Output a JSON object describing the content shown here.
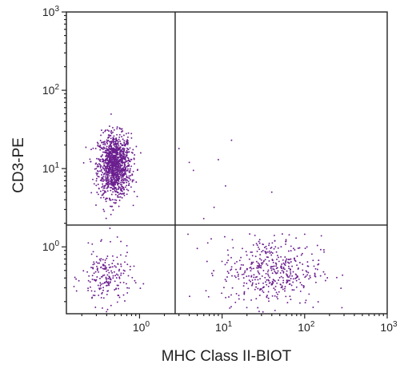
{
  "chart_data": {
    "type": "scatter",
    "title": "",
    "xlabel": "MHC Class II-BIOT",
    "ylabel": "CD3-PE",
    "x_scale": "log",
    "y_scale": "log",
    "xlim": [
      0.13,
      1000
    ],
    "ylim": [
      0.14,
      1000
    ],
    "x_ticks": [
      {
        "base": "10",
        "exp": "0",
        "value": 1
      },
      {
        "base": "10",
        "exp": "1",
        "value": 10
      },
      {
        "base": "10",
        "exp": "2",
        "value": 100
      },
      {
        "base": "10",
        "exp": "3",
        "value": 1000
      }
    ],
    "y_ticks": [
      {
        "base": "10",
        "exp": "0",
        "value": 1
      },
      {
        "base": "10",
        "exp": "1",
        "value": 10
      },
      {
        "base": "10",
        "exp": "2",
        "value": 100
      },
      {
        "base": "10",
        "exp": "3",
        "value": 1000
      }
    ],
    "gates": {
      "x": 2.7,
      "y": 1.9
    },
    "grid": false,
    "legend": "none",
    "point_color": "#6b1f8f",
    "populations": [
      {
        "center": [
          0.5,
          11.0
        ],
        "spread_decades": [
          0.1,
          0.2
        ],
        "count": 1200
      },
      {
        "center": [
          0.4,
          0.4
        ],
        "spread_decades": [
          0.15,
          0.18
        ],
        "count": 200
      },
      {
        "center": [
          40.0,
          0.5
        ],
        "spread_decades": [
          0.3,
          0.22
        ],
        "count": 450
      }
    ],
    "scattered_events": [
      [
        13,
        23
      ],
      [
        9,
        13
      ],
      [
        4.5,
        9.5
      ],
      [
        11,
        6
      ],
      [
        40,
        5
      ],
      [
        4,
        12
      ],
      [
        6,
        2.3
      ],
      [
        3,
        18
      ],
      [
        25,
        1.4
      ],
      [
        8,
        3.2
      ]
    ]
  }
}
